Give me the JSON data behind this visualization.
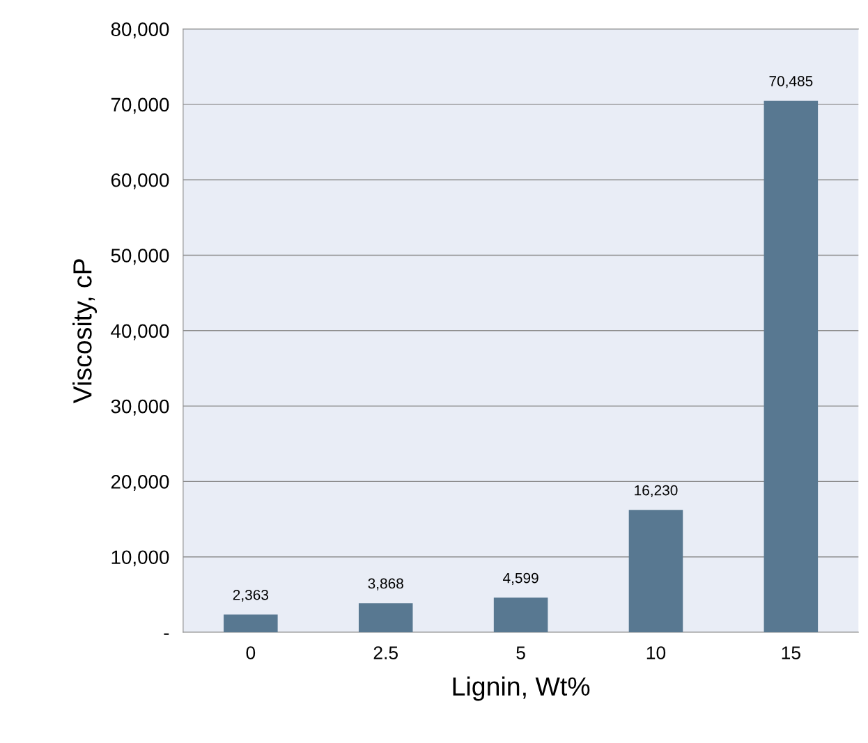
{
  "chart_data": {
    "type": "bar",
    "xlabel": "Lignin, Wt%",
    "ylabel": "Viscosity, cP",
    "categories": [
      "0",
      "2.5",
      "5",
      "10",
      "15"
    ],
    "values": [
      2363,
      3868,
      4599,
      16230,
      70485
    ],
    "value_labels": [
      "2,363",
      "3,868",
      "4,599",
      "16,230",
      "70,485"
    ],
    "color": "#587891",
    "ylim": [
      0,
      80000
    ],
    "yticks": [
      {
        "value": 0,
        "label": "-"
      },
      {
        "value": 10000,
        "label": "10,000"
      },
      {
        "value": 20000,
        "label": "20,000"
      },
      {
        "value": 30000,
        "label": "30,000"
      },
      {
        "value": 40000,
        "label": "40,000"
      },
      {
        "value": 50000,
        "label": "50,000"
      },
      {
        "value": 60000,
        "label": "60,000"
      },
      {
        "value": 70000,
        "label": "70,000"
      },
      {
        "value": 80000,
        "label": "80,000"
      }
    ],
    "grid": "y",
    "legend": false
  }
}
